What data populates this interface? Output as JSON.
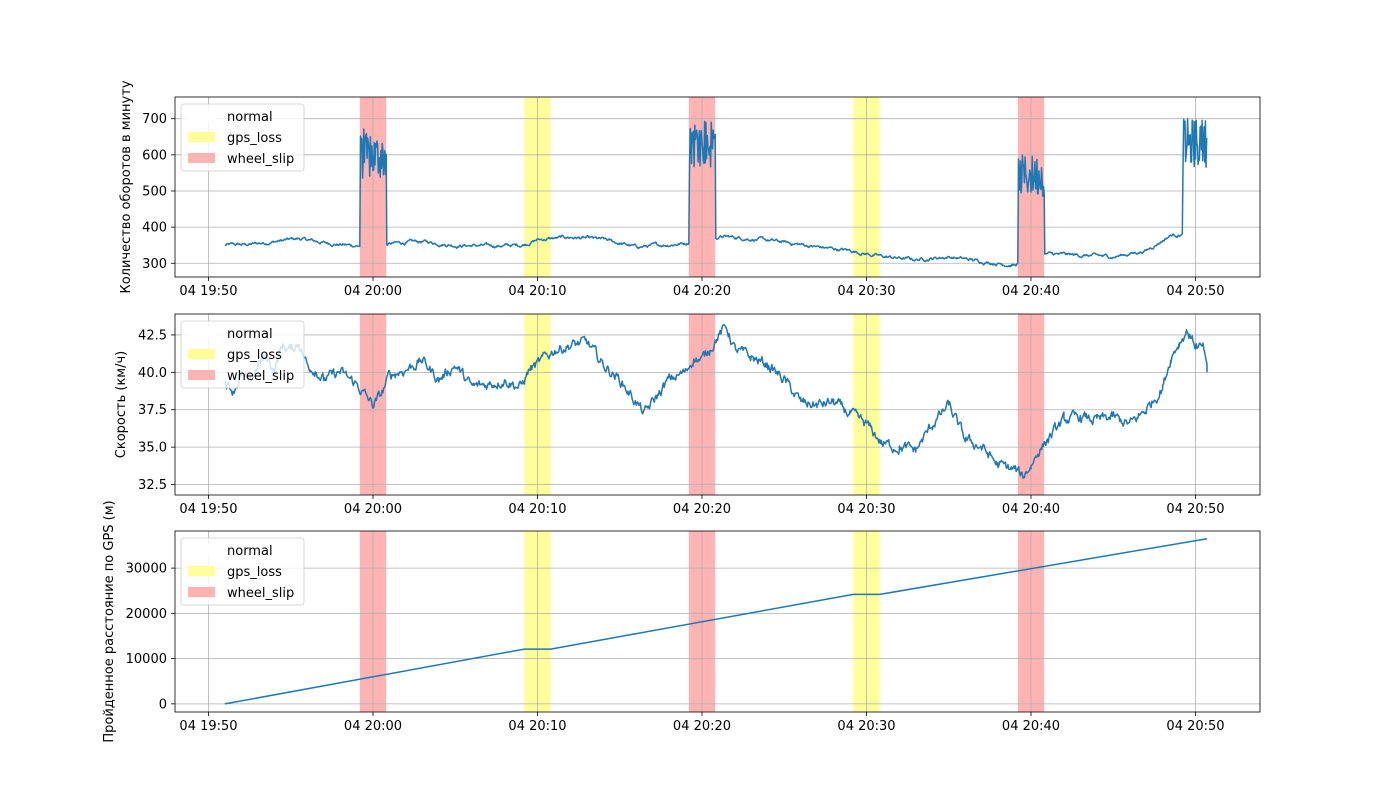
{
  "figure": {
    "background": "#ffffff",
    "line_color": "#1f77b4",
    "grid_color": "#b0b0b0"
  },
  "events": {
    "gps_loss_color": "#ffff99",
    "wheel_slip_color": "#ffb3b3",
    "intervals": [
      {
        "label": "wheel_slip",
        "start_min": 9.2,
        "end_min": 10.8
      },
      {
        "label": "gps_loss",
        "start_min": 19.2,
        "end_min": 20.8
      },
      {
        "label": "wheel_slip",
        "start_min": 29.2,
        "end_min": 30.8
      },
      {
        "label": "gps_loss",
        "start_min": 39.2,
        "end_min": 40.8
      },
      {
        "label": "wheel_slip",
        "start_min": 49.2,
        "end_min": 50.8
      }
    ]
  },
  "legend": {
    "entries": [
      {
        "label": "normal",
        "color": "#ffffff"
      },
      {
        "label": "gps_loss",
        "color": "#ffff99"
      },
      {
        "label": "wheel_slip",
        "color": "#ffb3b3"
      }
    ],
    "placement": "upper-left"
  },
  "x_axis": {
    "start_time": "04 19:48",
    "end_time": "04 20:54",
    "ticks": [
      {
        "min": 0,
        "label": "04 19:50"
      },
      {
        "min": 10,
        "label": "04 20:00"
      },
      {
        "min": 20,
        "label": "04 20:10"
      },
      {
        "min": 30,
        "label": "04 20:20"
      },
      {
        "min": 40,
        "label": "04 20:30"
      },
      {
        "min": 50,
        "label": "04 20:40"
      },
      {
        "min": 60,
        "label": "04 20:50"
      }
    ]
  },
  "chart_data": [
    {
      "type": "line",
      "ylabel": "Количество оборотов в минуту",
      "ylim": [
        262,
        760
      ],
      "yticks": [
        300,
        400,
        500,
        600,
        700
      ],
      "grid": true,
      "x_unit": "minutes after 04 19:50",
      "base_points": [
        [
          1.0,
          350
        ],
        [
          2.5,
          352
        ],
        [
          4.0,
          360
        ],
        [
          5.5,
          368
        ],
        [
          7.0,
          357
        ],
        [
          8.5,
          350
        ],
        [
          9.2,
          348
        ],
        [
          11.0,
          354
        ],
        [
          13.0,
          360
        ],
        [
          15.0,
          350
        ],
        [
          17.0,
          348
        ],
        [
          19.0,
          350
        ],
        [
          20.0,
          365
        ],
        [
          22.0,
          372
        ],
        [
          24.0,
          365
        ],
        [
          26.0,
          345
        ],
        [
          28.0,
          352
        ],
        [
          29.0,
          356
        ],
        [
          31.0,
          375
        ],
        [
          33.0,
          368
        ],
        [
          35.0,
          358
        ],
        [
          37.0,
          345
        ],
        [
          39.0,
          335
        ],
        [
          41.0,
          318
        ],
        [
          43.0,
          310
        ],
        [
          45.0,
          318
        ],
        [
          47.0,
          305
        ],
        [
          49.0,
          295
        ],
        [
          49.2,
          298
        ],
        [
          51.0,
          325
        ],
        [
          53.0,
          322
        ],
        [
          55.0,
          318
        ],
        [
          57.0,
          335
        ],
        [
          58.5,
          378
        ],
        [
          59.2,
          380
        ]
      ],
      "slip_segments": [
        {
          "start": 9.2,
          "end": 10.8,
          "low": 530,
          "high": 660,
          "peak": 695
        },
        {
          "start": 29.2,
          "end": 30.8,
          "low": 560,
          "high": 705,
          "peak": 730
        },
        {
          "start": 49.2,
          "end": 50.8,
          "low": 485,
          "high": 600,
          "peak": 640
        },
        {
          "start": 59.2,
          "end": 60.7,
          "low": 565,
          "high": 700,
          "peak": 730
        }
      ]
    },
    {
      "type": "line",
      "ylabel": "Скорость (км/ч)",
      "ylim": [
        31.8,
        43.9
      ],
      "yticks": [
        32.5,
        35.0,
        37.5,
        40.0,
        42.5
      ],
      "grid": true,
      "x_unit": "minutes after 04 19:50",
      "points": [
        [
          1.0,
          39.5
        ],
        [
          1.5,
          38.8
        ],
        [
          2.0,
          39.8
        ],
        [
          2.5,
          39.2
        ],
        [
          3.0,
          40.5
        ],
        [
          3.5,
          41.0
        ],
        [
          4.0,
          40.2
        ],
        [
          4.5,
          41.8
        ],
        [
          5.0,
          41.5
        ],
        [
          5.5,
          42.0
        ],
        [
          6.0,
          40.5
        ],
        [
          6.5,
          40.2
        ],
        [
          7.0,
          39.5
        ],
        [
          8.0,
          40.0
        ],
        [
          9.0,
          39.2
        ],
        [
          9.5,
          38.5
        ],
        [
          10.0,
          37.8
        ],
        [
          10.5,
          38.5
        ],
        [
          11.0,
          39.8
        ],
        [
          12.0,
          40.2
        ],
        [
          13.0,
          40.8
        ],
        [
          14.0,
          39.5
        ],
        [
          15.0,
          40.5
        ],
        [
          16.0,
          39.0
        ],
        [
          17.0,
          39.2
        ],
        [
          18.0,
          39.5
        ],
        [
          19.0,
          39.0
        ],
        [
          19.5,
          40.2
        ],
        [
          20.0,
          40.5
        ],
        [
          20.5,
          41.0
        ],
        [
          21.0,
          41.5
        ],
        [
          22.0,
          41.8
        ],
        [
          23.0,
          42.0
        ],
        [
          24.0,
          40.5
        ],
        [
          25.0,
          39.5
        ],
        [
          26.0,
          38.0
        ],
        [
          26.5,
          37.2
        ],
        [
          27.0,
          38.0
        ],
        [
          28.0,
          39.5
        ],
        [
          29.0,
          40.0
        ],
        [
          29.5,
          41.0
        ],
        [
          30.0,
          40.8
        ],
        [
          31.0,
          42.5
        ],
        [
          31.5,
          43.0
        ],
        [
          32.0,
          41.5
        ],
        [
          33.0,
          41.0
        ],
        [
          34.0,
          40.5
        ],
        [
          35.0,
          39.5
        ],
        [
          36.0,
          38.0
        ],
        [
          37.0,
          37.8
        ],
        [
          38.0,
          38.0
        ],
        [
          39.0,
          37.2
        ],
        [
          40.0,
          36.5
        ],
        [
          41.0,
          35.2
        ],
        [
          42.0,
          35.0
        ],
        [
          43.0,
          34.8
        ],
        [
          44.0,
          36.5
        ],
        [
          45.0,
          37.8
        ],
        [
          46.0,
          35.5
        ],
        [
          47.0,
          35.0
        ],
        [
          48.0,
          33.8
        ],
        [
          49.0,
          33.5
        ],
        [
          49.5,
          33.0
        ],
        [
          50.0,
          33.8
        ],
        [
          50.5,
          34.8
        ],
        [
          51.0,
          35.5
        ],
        [
          52.0,
          36.8
        ],
        [
          53.0,
          37.0
        ],
        [
          54.0,
          36.8
        ],
        [
          55.0,
          37.0
        ],
        [
          56.0,
          36.5
        ],
        [
          57.0,
          37.5
        ],
        [
          58.0,
          39.0
        ],
        [
          58.5,
          41.0
        ],
        [
          59.0,
          42.0
        ],
        [
          59.5,
          42.8
        ],
        [
          60.0,
          41.8
        ],
        [
          60.5,
          41.5
        ],
        [
          60.7,
          40.0
        ]
      ]
    },
    {
      "type": "line",
      "ylabel": "Пройденное расстояние по GPS (м)",
      "ylim": [
        -1800,
        38200
      ],
      "yticks": [
        0,
        10000,
        20000,
        30000
      ],
      "grid": true,
      "x_unit": "minutes after 04 19:50",
      "points": [
        [
          1.0,
          0
        ],
        [
          19.2,
          12100
        ],
        [
          20.8,
          12100
        ],
        [
          39.2,
          24200
        ],
        [
          40.8,
          24200
        ],
        [
          60.7,
          36500
        ]
      ]
    }
  ]
}
